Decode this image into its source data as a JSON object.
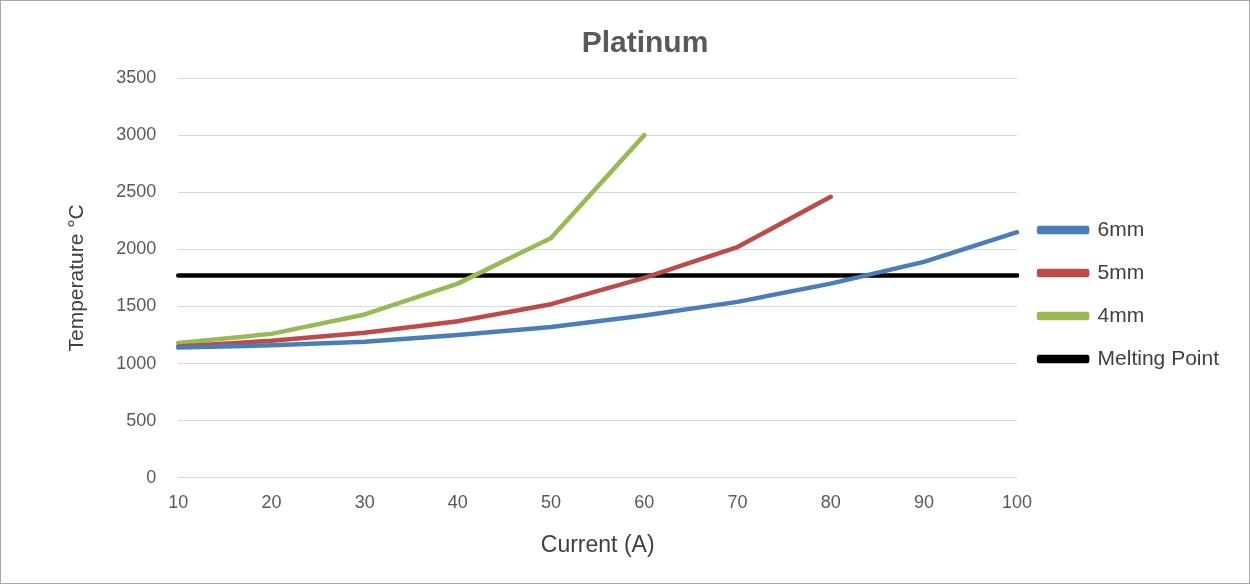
{
  "chart_data": {
    "type": "line",
    "title": "Platinum",
    "xlabel": "Current (A)",
    "ylabel": "Temperature °C",
    "categories": [
      "10",
      "20",
      "30",
      "40",
      "50",
      "60",
      "70",
      "80",
      "90",
      "100"
    ],
    "series": [
      {
        "name": "6mm",
        "color": "#4a7ebb",
        "values": [
          1140,
          1160,
          1190,
          1250,
          1320,
          1420,
          1540,
          1700,
          1890,
          2150
        ]
      },
      {
        "name": "5mm",
        "color": "#be4b48",
        "values": [
          1150,
          1200,
          1270,
          1370,
          1520,
          1750,
          2020,
          2460,
          null,
          null
        ]
      },
      {
        "name": "4mm",
        "color": "#98b954",
        "values": [
          1180,
          1260,
          1430,
          1700,
          2100,
          3000,
          null,
          null,
          null,
          null
        ]
      },
      {
        "name": "Melting Point",
        "color": "#000000",
        "values": [
          1770,
          1770,
          1770,
          1770,
          1770,
          1770,
          1770,
          1770,
          1770,
          1770
        ]
      }
    ],
    "ylim": [
      0,
      3500
    ],
    "yticks": [
      0,
      500,
      1000,
      1500,
      2000,
      2500,
      3000,
      3500
    ],
    "grid": "y",
    "legend": "right",
    "marker": "none",
    "line_style": "solid"
  }
}
